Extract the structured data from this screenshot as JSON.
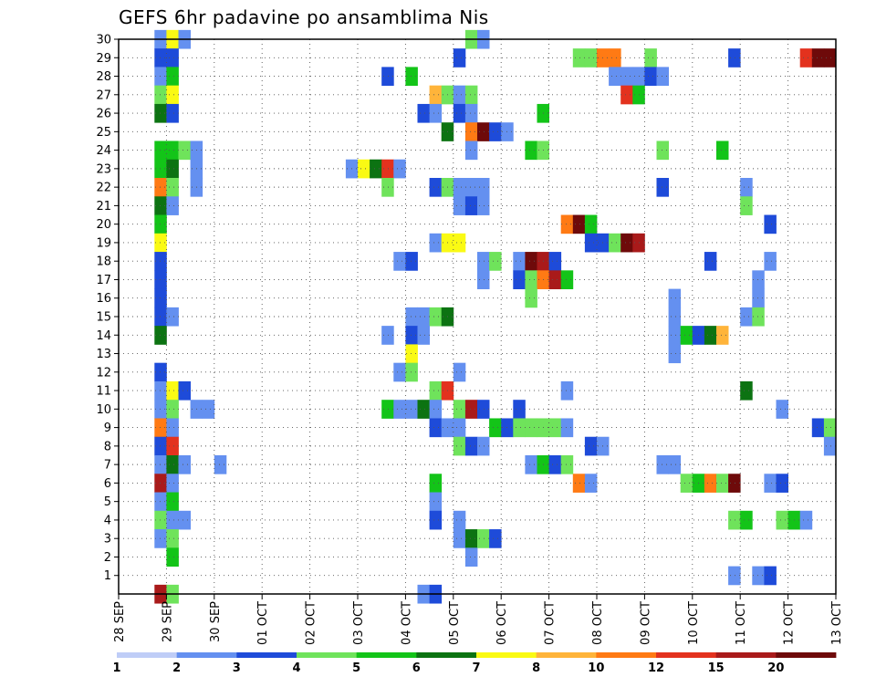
{
  "chart_data": {
    "type": "heatmap",
    "title": "GEFS 6hr padavine po ansamblima Nis",
    "xlabel": "",
    "ylabel": "",
    "y_ticks": [
      "1",
      "2",
      "3",
      "4",
      "5",
      "6",
      "7",
      "8",
      "9",
      "10",
      "11",
      "12",
      "13",
      "14",
      "15",
      "16",
      "17",
      "18",
      "19",
      "20",
      "21",
      "22",
      "23",
      "24",
      "25",
      "26",
      "27",
      "28",
      "29",
      "30"
    ],
    "x_ticks": [
      "28 SEP",
      "29 SEP",
      "30 SEP",
      "01 OCT",
      "02 OCT",
      "03 OCT",
      "04 OCT",
      "05 OCT",
      "06 OCT",
      "07 OCT",
      "08 OCT",
      "09 OCT",
      "10 OCT",
      "11 OCT",
      "12 OCT",
      "13 OCT"
    ],
    "x_range_steps": [
      0,
      60
    ],
    "x_step_hours": 6,
    "y_range": [
      0,
      30
    ],
    "grid": true,
    "colorbar": {
      "labels": [
        "1",
        "2",
        "3",
        "4",
        "5",
        "6",
        "7",
        "8",
        "10",
        "12",
        "15",
        "20"
      ],
      "colors": [
        "#bfcdf7",
        "#6490f0",
        "#1e4bd9",
        "#6fe35b",
        "#13c418",
        "#0c7312",
        "#fafa14",
        "#ffb43a",
        "#ff7a14",
        "#e3321e",
        "#a91a1a",
        "#6e0a0a"
      ]
    },
    "cells": [
      {
        "x": 4,
        "y": 30,
        "v": 1.5
      },
      {
        "x": 5,
        "y": 30,
        "v": 6
      },
      {
        "x": 6,
        "y": 30,
        "v": 1.5
      },
      {
        "x": 30,
        "y": 30,
        "v": 3
      },
      {
        "x": 31,
        "y": 30,
        "v": 1.5
      },
      {
        "x": 4,
        "y": 29,
        "v": 2
      },
      {
        "x": 5,
        "y": 29,
        "v": 2
      },
      {
        "x": 29,
        "y": 29,
        "v": 2
      },
      {
        "x": 39,
        "y": 29,
        "v": 3
      },
      {
        "x": 40,
        "y": 29,
        "v": 3
      },
      {
        "x": 41,
        "y": 29,
        "v": 9
      },
      {
        "x": 42,
        "y": 29,
        "v": 9
      },
      {
        "x": 45,
        "y": 29,
        "v": 3
      },
      {
        "x": 52,
        "y": 29,
        "v": 2
      },
      {
        "x": 58,
        "y": 29,
        "v": 11
      },
      {
        "x": 59,
        "y": 29,
        "v": 17
      },
      {
        "x": 60,
        "y": 29,
        "v": 17
      },
      {
        "x": 4,
        "y": 28,
        "v": 1.5
      },
      {
        "x": 5,
        "y": 28,
        "v": 4.5
      },
      {
        "x": 23,
        "y": 28,
        "v": 2
      },
      {
        "x": 25,
        "y": 28,
        "v": 4.5
      },
      {
        "x": 42,
        "y": 28,
        "v": 1.5
      },
      {
        "x": 43,
        "y": 28,
        "v": 1.5
      },
      {
        "x": 44,
        "y": 28,
        "v": 1.5
      },
      {
        "x": 45,
        "y": 28,
        "v": 2
      },
      {
        "x": 46,
        "y": 28,
        "v": 1.5
      },
      {
        "x": 4,
        "y": 27,
        "v": 3
      },
      {
        "x": 5,
        "y": 27,
        "v": 6
      },
      {
        "x": 27,
        "y": 27,
        "v": 7.5
      },
      {
        "x": 28,
        "y": 27,
        "v": 3
      },
      {
        "x": 29,
        "y": 27,
        "v": 1.5
      },
      {
        "x": 30,
        "y": 27,
        "v": 3
      },
      {
        "x": 43,
        "y": 27,
        "v": 11
      },
      {
        "x": 44,
        "y": 27,
        "v": 4.5
      },
      {
        "x": 4,
        "y": 26,
        "v": 5.5
      },
      {
        "x": 5,
        "y": 26,
        "v": 2
      },
      {
        "x": 26,
        "y": 26,
        "v": 2
      },
      {
        "x": 27,
        "y": 26,
        "v": 1.5
      },
      {
        "x": 29,
        "y": 26,
        "v": 2
      },
      {
        "x": 30,
        "y": 26,
        "v": 1.5
      },
      {
        "x": 36,
        "y": 26,
        "v": 4.5
      },
      {
        "x": 28,
        "y": 25,
        "v": 5.5
      },
      {
        "x": 30,
        "y": 25,
        "v": 9
      },
      {
        "x": 31,
        "y": 25,
        "v": 17
      },
      {
        "x": 32,
        "y": 25,
        "v": 2
      },
      {
        "x": 33,
        "y": 25,
        "v": 1.5
      },
      {
        "x": 4,
        "y": 24,
        "v": 4.5
      },
      {
        "x": 5,
        "y": 24,
        "v": 4.5
      },
      {
        "x": 6,
        "y": 24,
        "v": 3
      },
      {
        "x": 7,
        "y": 24,
        "v": 1.5
      },
      {
        "x": 30,
        "y": 24,
        "v": 1.5
      },
      {
        "x": 35,
        "y": 24,
        "v": 4.5
      },
      {
        "x": 36,
        "y": 24,
        "v": 3
      },
      {
        "x": 46,
        "y": 24,
        "v": 3
      },
      {
        "x": 51,
        "y": 24,
        "v": 4.5
      },
      {
        "x": 4,
        "y": 23,
        "v": 4.5
      },
      {
        "x": 5,
        "y": 23,
        "v": 5.5
      },
      {
        "x": 7,
        "y": 23,
        "v": 1.5
      },
      {
        "x": 20,
        "y": 23,
        "v": 1.5
      },
      {
        "x": 21,
        "y": 23,
        "v": 6
      },
      {
        "x": 22,
        "y": 23,
        "v": 5.5
      },
      {
        "x": 23,
        "y": 23,
        "v": 11
      },
      {
        "x": 24,
        "y": 23,
        "v": 1.5
      },
      {
        "x": 4,
        "y": 22,
        "v": 9
      },
      {
        "x": 5,
        "y": 22,
        "v": 3
      },
      {
        "x": 7,
        "y": 22,
        "v": 1.5
      },
      {
        "x": 23,
        "y": 22,
        "v": 3
      },
      {
        "x": 27,
        "y": 22,
        "v": 2
      },
      {
        "x": 28,
        "y": 22,
        "v": 3
      },
      {
        "x": 29,
        "y": 22,
        "v": 1.5
      },
      {
        "x": 30,
        "y": 22,
        "v": 1.5
      },
      {
        "x": 31,
        "y": 22,
        "v": 1.5
      },
      {
        "x": 46,
        "y": 22,
        "v": 2
      },
      {
        "x": 53,
        "y": 22,
        "v": 1.5
      },
      {
        "x": 4,
        "y": 21,
        "v": 5.5
      },
      {
        "x": 5,
        "y": 21,
        "v": 1.5
      },
      {
        "x": 29,
        "y": 21,
        "v": 1.5
      },
      {
        "x": 30,
        "y": 21,
        "v": 2
      },
      {
        "x": 31,
        "y": 21,
        "v": 1.5
      },
      {
        "x": 53,
        "y": 21,
        "v": 3
      },
      {
        "x": 4,
        "y": 20,
        "v": 4.5
      },
      {
        "x": 38,
        "y": 20,
        "v": 9
      },
      {
        "x": 39,
        "y": 20,
        "v": 17
      },
      {
        "x": 40,
        "y": 20,
        "v": 4.5
      },
      {
        "x": 55,
        "y": 20,
        "v": 2
      },
      {
        "x": 4,
        "y": 19,
        "v": 6
      },
      {
        "x": 27,
        "y": 19,
        "v": 1.5
      },
      {
        "x": 28,
        "y": 19,
        "v": 6
      },
      {
        "x": 29,
        "y": 19,
        "v": 6
      },
      {
        "x": 40,
        "y": 19,
        "v": 2
      },
      {
        "x": 41,
        "y": 19,
        "v": 2
      },
      {
        "x": 42,
        "y": 19,
        "v": 3
      },
      {
        "x": 43,
        "y": 19,
        "v": 17
      },
      {
        "x": 44,
        "y": 19,
        "v": 13
      },
      {
        "x": 4,
        "y": 18,
        "v": 2
      },
      {
        "x": 24,
        "y": 18,
        "v": 1.5
      },
      {
        "x": 25,
        "y": 18,
        "v": 2
      },
      {
        "x": 31,
        "y": 18,
        "v": 1.5
      },
      {
        "x": 32,
        "y": 18,
        "v": 3
      },
      {
        "x": 34,
        "y": 18,
        "v": 1.5
      },
      {
        "x": 35,
        "y": 18,
        "v": 17
      },
      {
        "x": 36,
        "y": 18,
        "v": 13
      },
      {
        "x": 37,
        "y": 18,
        "v": 2
      },
      {
        "x": 50,
        "y": 18,
        "v": 2
      },
      {
        "x": 55,
        "y": 18,
        "v": 1.5
      },
      {
        "x": 4,
        "y": 17,
        "v": 2
      },
      {
        "x": 31,
        "y": 17,
        "v": 1.5
      },
      {
        "x": 34,
        "y": 17,
        "v": 2
      },
      {
        "x": 35,
        "y": 17,
        "v": 3
      },
      {
        "x": 36,
        "y": 17,
        "v": 9
      },
      {
        "x": 37,
        "y": 17,
        "v": 13
      },
      {
        "x": 38,
        "y": 17,
        "v": 4.5
      },
      {
        "x": 54,
        "y": 17,
        "v": 1.5
      },
      {
        "x": 4,
        "y": 16,
        "v": 2
      },
      {
        "x": 35,
        "y": 16,
        "v": 3
      },
      {
        "x": 47,
        "y": 16,
        "v": 1.5
      },
      {
        "x": 54,
        "y": 16,
        "v": 1.5
      },
      {
        "x": 4,
        "y": 15,
        "v": 2
      },
      {
        "x": 5,
        "y": 15,
        "v": 1.5
      },
      {
        "x": 25,
        "y": 15,
        "v": 1.5
      },
      {
        "x": 26,
        "y": 15,
        "v": 1.5
      },
      {
        "x": 27,
        "y": 15,
        "v": 3
      },
      {
        "x": 28,
        "y": 15,
        "v": 5.5
      },
      {
        "x": 47,
        "y": 15,
        "v": 1.5
      },
      {
        "x": 53,
        "y": 15,
        "v": 1.5
      },
      {
        "x": 54,
        "y": 15,
        "v": 3
      },
      {
        "x": 4,
        "y": 14,
        "v": 5.5
      },
      {
        "x": 23,
        "y": 14,
        "v": 1.5
      },
      {
        "x": 25,
        "y": 14,
        "v": 2
      },
      {
        "x": 26,
        "y": 14,
        "v": 1.5
      },
      {
        "x": 47,
        "y": 14,
        "v": 1.5
      },
      {
        "x": 48,
        "y": 14,
        "v": 4.5
      },
      {
        "x": 49,
        "y": 14,
        "v": 2
      },
      {
        "x": 50,
        "y": 14,
        "v": 5.5
      },
      {
        "x": 51,
        "y": 14,
        "v": 7.5
      },
      {
        "x": 25,
        "y": 13,
        "v": 6
      },
      {
        "x": 47,
        "y": 13,
        "v": 1.5
      },
      {
        "x": 4,
        "y": 12,
        "v": 2
      },
      {
        "x": 24,
        "y": 12,
        "v": 1.5
      },
      {
        "x": 25,
        "y": 12,
        "v": 3
      },
      {
        "x": 29,
        "y": 12,
        "v": 1.5
      },
      {
        "x": 4,
        "y": 11,
        "v": 1.5
      },
      {
        "x": 5,
        "y": 11,
        "v": 6
      },
      {
        "x": 6,
        "y": 11,
        "v": 2
      },
      {
        "x": 27,
        "y": 11,
        "v": 3
      },
      {
        "x": 28,
        "y": 11,
        "v": 11
      },
      {
        "x": 38,
        "y": 11,
        "v": 1.5
      },
      {
        "x": 53,
        "y": 11,
        "v": 5.5
      },
      {
        "x": 4,
        "y": 10,
        "v": 1.5
      },
      {
        "x": 5,
        "y": 10,
        "v": 3
      },
      {
        "x": 7,
        "y": 10,
        "v": 1.5
      },
      {
        "x": 8,
        "y": 10,
        "v": 1.5
      },
      {
        "x": 23,
        "y": 10,
        "v": 4.5
      },
      {
        "x": 24,
        "y": 10,
        "v": 1.5
      },
      {
        "x": 25,
        "y": 10,
        "v": 1.5
      },
      {
        "x": 26,
        "y": 10,
        "v": 5.5
      },
      {
        "x": 27,
        "y": 10,
        "v": 1.5
      },
      {
        "x": 29,
        "y": 10,
        "v": 3
      },
      {
        "x": 30,
        "y": 10,
        "v": 13
      },
      {
        "x": 31,
        "y": 10,
        "v": 2
      },
      {
        "x": 34,
        "y": 10,
        "v": 2
      },
      {
        "x": 56,
        "y": 10,
        "v": 1.5
      },
      {
        "x": 4,
        "y": 9,
        "v": 9
      },
      {
        "x": 5,
        "y": 9,
        "v": 1.5
      },
      {
        "x": 27,
        "y": 9,
        "v": 2
      },
      {
        "x": 28,
        "y": 9,
        "v": 1.5
      },
      {
        "x": 29,
        "y": 9,
        "v": 1.5
      },
      {
        "x": 32,
        "y": 9,
        "v": 4.5
      },
      {
        "x": 33,
        "y": 9,
        "v": 2
      },
      {
        "x": 34,
        "y": 9,
        "v": 3
      },
      {
        "x": 35,
        "y": 9,
        "v": 3
      },
      {
        "x": 36,
        "y": 9,
        "v": 3
      },
      {
        "x": 37,
        "y": 9,
        "v": 3
      },
      {
        "x": 38,
        "y": 9,
        "v": 1.5
      },
      {
        "x": 59,
        "y": 9,
        "v": 2
      },
      {
        "x": 60,
        "y": 9,
        "v": 3
      },
      {
        "x": 4,
        "y": 8,
        "v": 2
      },
      {
        "x": 5,
        "y": 8,
        "v": 11
      },
      {
        "x": 29,
        "y": 8,
        "v": 3
      },
      {
        "x": 30,
        "y": 8,
        "v": 2
      },
      {
        "x": 31,
        "y": 8,
        "v": 1.5
      },
      {
        "x": 40,
        "y": 8,
        "v": 2
      },
      {
        "x": 41,
        "y": 8,
        "v": 1.5
      },
      {
        "x": 60,
        "y": 8,
        "v": 1.5
      },
      {
        "x": 4,
        "y": 7,
        "v": 1.5
      },
      {
        "x": 5,
        "y": 7,
        "v": 5.5
      },
      {
        "x": 6,
        "y": 7,
        "v": 1.5
      },
      {
        "x": 9,
        "y": 7,
        "v": 1.5
      },
      {
        "x": 35,
        "y": 7,
        "v": 1.5
      },
      {
        "x": 36,
        "y": 7,
        "v": 4.5
      },
      {
        "x": 37,
        "y": 7,
        "v": 2
      },
      {
        "x": 38,
        "y": 7,
        "v": 3
      },
      {
        "x": 46,
        "y": 7,
        "v": 1.5
      },
      {
        "x": 47,
        "y": 7,
        "v": 1.5
      },
      {
        "x": 4,
        "y": 6,
        "v": 13
      },
      {
        "x": 5,
        "y": 6,
        "v": 1.5
      },
      {
        "x": 27,
        "y": 6,
        "v": 4.5
      },
      {
        "x": 39,
        "y": 6,
        "v": 9
      },
      {
        "x": 40,
        "y": 6,
        "v": 1.5
      },
      {
        "x": 48,
        "y": 6,
        "v": 3
      },
      {
        "x": 49,
        "y": 6,
        "v": 4.5
      },
      {
        "x": 50,
        "y": 6,
        "v": 9
      },
      {
        "x": 51,
        "y": 6,
        "v": 3
      },
      {
        "x": 52,
        "y": 6,
        "v": 17
      },
      {
        "x": 55,
        "y": 6,
        "v": 1.5
      },
      {
        "x": 56,
        "y": 6,
        "v": 2
      },
      {
        "x": 4,
        "y": 5,
        "v": 1.5
      },
      {
        "x": 5,
        "y": 5,
        "v": 4.5
      },
      {
        "x": 27,
        "y": 5,
        "v": 1.5
      },
      {
        "x": 4,
        "y": 4,
        "v": 3
      },
      {
        "x": 5,
        "y": 4,
        "v": 1.5
      },
      {
        "x": 6,
        "y": 4,
        "v": 1.5
      },
      {
        "x": 27,
        "y": 4,
        "v": 2
      },
      {
        "x": 29,
        "y": 4,
        "v": 1.5
      },
      {
        "x": 52,
        "y": 4,
        "v": 3
      },
      {
        "x": 53,
        "y": 4,
        "v": 4.5
      },
      {
        "x": 56,
        "y": 4,
        "v": 3
      },
      {
        "x": 57,
        "y": 4,
        "v": 4.5
      },
      {
        "x": 58,
        "y": 4,
        "v": 1.5
      },
      {
        "x": 4,
        "y": 3,
        "v": 1.5
      },
      {
        "x": 5,
        "y": 3,
        "v": 3
      },
      {
        "x": 29,
        "y": 3,
        "v": 1.5
      },
      {
        "x": 30,
        "y": 3,
        "v": 5.5
      },
      {
        "x": 31,
        "y": 3,
        "v": 3
      },
      {
        "x": 32,
        "y": 3,
        "v": 2
      },
      {
        "x": 5,
        "y": 2,
        "v": 4.5
      },
      {
        "x": 30,
        "y": 2,
        "v": 1.5
      },
      {
        "x": 52,
        "y": 1,
        "v": 1.5
      },
      {
        "x": 54,
        "y": 1,
        "v": 1.5
      },
      {
        "x": 55,
        "y": 1,
        "v": 2
      },
      {
        "x": 4,
        "y": 0,
        "v": 13
      },
      {
        "x": 5,
        "y": 0,
        "v": 3
      },
      {
        "x": 26,
        "y": 0,
        "v": 1.5
      },
      {
        "x": 27,
        "y": 0,
        "v": 2
      }
    ]
  }
}
